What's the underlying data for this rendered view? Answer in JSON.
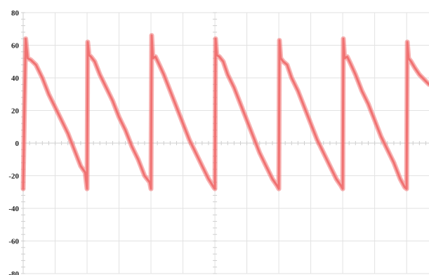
{
  "chart_data": {
    "type": "line",
    "title": "",
    "xlabel": "",
    "ylabel": "",
    "ylim": [
      -80,
      80
    ],
    "xlim": [
      0,
      6.35
    ],
    "grid": true,
    "legend": "none",
    "yticks": [
      80,
      60,
      40,
      20,
      0,
      -20,
      -40,
      -60,
      -80
    ],
    "ytick_labels": [
      "80",
      "60",
      "40",
      "20",
      "0",
      "-20",
      "-40",
      "-60",
      "-80"
    ],
    "series": [
      {
        "color": "#f07272",
        "x": [
          0.0,
          0.02,
          0.04,
          0.07,
          0.12,
          0.2,
          0.3,
          0.4,
          0.5,
          0.6,
          0.7,
          0.8,
          0.9,
          0.97,
          1.0,
          1.01,
          1.03,
          1.06,
          1.12,
          1.2,
          1.3,
          1.4,
          1.5,
          1.6,
          1.7,
          1.8,
          1.9,
          1.98,
          2.0,
          2.01,
          2.03,
          2.07,
          2.13,
          2.2,
          2.3,
          2.4,
          2.5,
          2.6,
          2.7,
          2.8,
          2.9,
          2.98,
          3.0,
          3.01,
          3.03,
          3.07,
          3.13,
          3.2,
          3.3,
          3.4,
          3.5,
          3.6,
          3.7,
          3.8,
          3.9,
          3.97,
          4.0,
          4.01,
          4.03,
          4.07,
          4.13,
          4.2,
          4.3,
          4.4,
          4.5,
          4.6,
          4.7,
          4.8,
          4.9,
          4.97,
          5.0,
          5.01,
          5.03,
          5.07,
          5.13,
          5.2,
          5.3,
          5.4,
          5.5,
          5.6,
          5.7,
          5.8,
          5.9,
          5.97,
          6.0,
          6.01,
          6.03,
          6.07,
          6.13,
          6.2,
          6.3,
          6.35
        ],
        "y": [
          -28,
          20,
          64,
          52,
          51,
          48,
          40,
          30,
          22,
          14,
          6,
          -4,
          -14,
          -18,
          -28,
          62,
          54,
          53,
          50,
          42,
          34,
          26,
          16,
          8,
          -2,
          -10,
          -20,
          -24,
          -28,
          66,
          52,
          53,
          48,
          42,
          32,
          22,
          12,
          2,
          -6,
          -14,
          -22,
          -27,
          -28,
          64,
          54,
          53,
          50,
          42,
          34,
          24,
          14,
          4,
          -6,
          -14,
          -22,
          -26,
          -28,
          63,
          52,
          50,
          48,
          40,
          32,
          22,
          12,
          2,
          -6,
          -14,
          -22,
          -26,
          -28,
          64,
          52,
          53,
          48,
          42,
          32,
          24,
          14,
          4,
          -4,
          -12,
          -22,
          -27,
          -28,
          62,
          52,
          50,
          46,
          42,
          38,
          36
        ]
      }
    ]
  }
}
